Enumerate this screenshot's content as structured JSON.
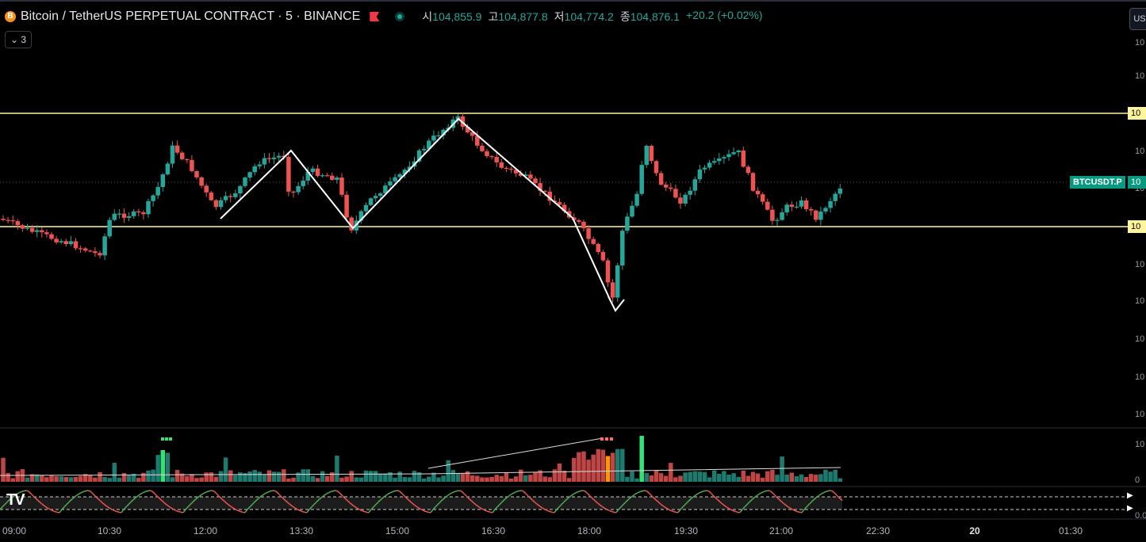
{
  "legend": {
    "coin_icon": "B",
    "symbol": "Bitcoin / TetherUS PERPETUAL CONTRACT · 5 · BINANCE",
    "open_label": "시",
    "open": "104,855.9",
    "high_label": "고",
    "high": "104,877.8",
    "low_label": "저",
    "low": "104,774.2",
    "close_label": "종",
    "close": "104,876.1",
    "change": "+20.2 (+0.02%)",
    "indicator_count": "⌄ 3",
    "currency_button": "US"
  },
  "price_axis": {
    "labels": [
      "10",
      "10",
      "10",
      "10",
      "10",
      "10",
      "10",
      "10",
      "10",
      "10"
    ],
    "resistance_tag": "10",
    "support_tag": "10",
    "last_price_tag": "10",
    "symbol_tag": "BTCUSDT.P"
  },
  "volume_axis": {
    "labels": [
      "10",
      "0"
    ]
  },
  "osc_axis": {
    "label": "0.0"
  },
  "time_axis": {
    "labels": [
      "09:00",
      "10:30",
      "12:00",
      "13:30",
      "15:00",
      "16:30",
      "18:00",
      "19:30",
      "21:00",
      "22:30",
      "20",
      "01:30"
    ]
  },
  "colors": {
    "up": "#26a69a",
    "down": "#ef5350",
    "level": "#fff59d",
    "background": "#000000"
  },
  "chart_data": {
    "type": "candlestick",
    "interval": "5",
    "exchange": "BINANCE",
    "last": {
      "open": 104855.9,
      "high": 104877.8,
      "low": 104774.2,
      "close": 104876.1,
      "change": 20.2,
      "change_pct": 0.02
    },
    "horizontal_levels": [
      "resistance",
      "support"
    ],
    "pattern_annotations": [
      "zigzag swing lines",
      "down arrow at low"
    ],
    "volume_indicator": true,
    "oscillator_indicator": true
  }
}
